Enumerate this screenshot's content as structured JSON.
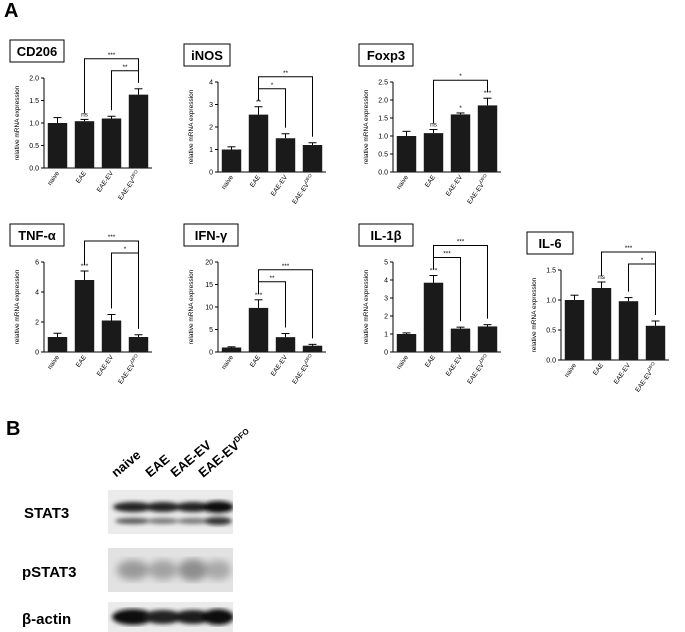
{
  "panels": {
    "a": "A",
    "b": "B"
  },
  "chart_data": [
    {
      "type": "bar",
      "title": "CD206",
      "ylabel": "relative mRNA expression",
      "categories": [
        "naive",
        "EAE",
        "EAE-EV",
        "EAE-EV"
      ],
      "category_sup": [
        "",
        "",
        "",
        "DFO"
      ],
      "values": [
        1.0,
        1.04,
        1.1,
        1.63
      ],
      "errors": [
        0.12,
        0.04,
        0.05,
        0.13
      ],
      "ylim": [
        0,
        2.0
      ],
      "yticks": [
        "0.0",
        "0.5",
        "1.0",
        "1.5",
        "2.0"
      ],
      "bar_marks": [
        "",
        "ns",
        "",
        ""
      ],
      "brackets": [
        {
          "from": 1,
          "to": 3,
          "label": "***"
        },
        {
          "from": 2,
          "to": 3,
          "label": "**"
        }
      ]
    },
    {
      "type": "bar",
      "title": "iNOS",
      "ylabel": "relative mRNA expression",
      "categories": [
        "naive",
        "EAE",
        "EAE-EV",
        "EAE-EV"
      ],
      "category_sup": [
        "",
        "",
        "",
        "DFO"
      ],
      "values": [
        1.0,
        2.55,
        1.5,
        1.2
      ],
      "errors": [
        0.12,
        0.35,
        0.2,
        0.1
      ],
      "ylim": [
        0,
        4
      ],
      "yticks": [
        "0",
        "1",
        "2",
        "3",
        "4"
      ],
      "bar_marks": [
        "",
        "**",
        "",
        ""
      ],
      "brackets": [
        {
          "from": 1,
          "to": 3,
          "label": "**"
        },
        {
          "from": 1,
          "to": 2,
          "label": "*"
        }
      ]
    },
    {
      "type": "bar",
      "title": "Foxp3",
      "ylabel": "relative mRNA expression",
      "categories": [
        "naive",
        "EAE",
        "EAE-EV",
        "EAE-EV"
      ],
      "category_sup": [
        "",
        "",
        "",
        "DFO"
      ],
      "values": [
        1.0,
        1.08,
        1.6,
        1.85
      ],
      "errors": [
        0.13,
        0.1,
        0.04,
        0.2
      ],
      "ylim": [
        0,
        2.5
      ],
      "yticks": [
        "0.0",
        "0.5",
        "1.0",
        "1.5",
        "2.0",
        "2.5"
      ],
      "bar_marks": [
        "",
        "ns",
        "*",
        "***"
      ],
      "brackets": [
        {
          "from": 1,
          "to": 3,
          "label": "*"
        }
      ]
    },
    {
      "type": "bar",
      "title": "TNF-α",
      "ylabel": "relative mRNA expression",
      "categories": [
        "naive",
        "EAE",
        "EAE-EV",
        "EAE-EV"
      ],
      "category_sup": [
        "",
        "",
        "",
        "DFO"
      ],
      "values": [
        1.0,
        4.8,
        2.1,
        1.0
      ],
      "errors": [
        0.25,
        0.6,
        0.4,
        0.15
      ],
      "ylim": [
        0,
        6
      ],
      "yticks": [
        "0",
        "2",
        "4",
        "6"
      ],
      "bar_marks": [
        "",
        "***",
        "",
        ""
      ],
      "brackets": [
        {
          "from": 1,
          "to": 3,
          "label": "***"
        },
        {
          "from": 2,
          "to": 3,
          "label": "*"
        }
      ]
    },
    {
      "type": "bar",
      "title": "IFN-γ",
      "ylabel": "relative mRNA expression",
      "categories": [
        "naive",
        "EAE",
        "EAE-EV",
        "EAE-EV"
      ],
      "category_sup": [
        "",
        "",
        "",
        "DFO"
      ],
      "values": [
        1.0,
        9.8,
        3.3,
        1.4
      ],
      "errors": [
        0.15,
        1.8,
        0.8,
        0.3
      ],
      "ylim": [
        0,
        20
      ],
      "yticks": [
        "0",
        "5",
        "10",
        "15",
        "20"
      ],
      "bar_marks": [
        "",
        "***",
        "",
        ""
      ],
      "brackets": [
        {
          "from": 1,
          "to": 3,
          "label": "***"
        },
        {
          "from": 1,
          "to": 2,
          "label": "**"
        }
      ]
    },
    {
      "type": "bar",
      "title": "IL-1β",
      "ylabel": "relative mRNA expression",
      "categories": [
        "naive",
        "EAE",
        "EAE-EV",
        "EAE-EV"
      ],
      "category_sup": [
        "",
        "",
        "",
        "DFO"
      ],
      "values": [
        1.0,
        3.85,
        1.3,
        1.42
      ],
      "errors": [
        0.06,
        0.4,
        0.08,
        0.1
      ],
      "ylim": [
        0,
        5
      ],
      "yticks": [
        "0",
        "1",
        "2",
        "3",
        "4",
        "5"
      ],
      "bar_marks": [
        "",
        "***",
        "",
        ""
      ],
      "brackets": [
        {
          "from": 1,
          "to": 3,
          "label": "***"
        },
        {
          "from": 1,
          "to": 2,
          "label": "***"
        }
      ]
    },
    {
      "type": "bar",
      "title": "IL-6",
      "ylabel": "relative mRNA expression",
      "categories": [
        "naive",
        "EAE",
        "EAE-EV",
        "EAE-EV"
      ],
      "category_sup": [
        "",
        "",
        "",
        "DFO"
      ],
      "values": [
        1.0,
        1.2,
        0.98,
        0.57
      ],
      "errors": [
        0.08,
        0.1,
        0.06,
        0.08
      ],
      "ylim": [
        0,
        1.5
      ],
      "yticks": [
        "0.0",
        "0.5",
        "1.0",
        "1.5"
      ],
      "bar_marks": [
        "",
        "ns",
        "",
        ""
      ],
      "brackets": [
        {
          "from": 1,
          "to": 3,
          "label": "***"
        },
        {
          "from": 2,
          "to": 3,
          "label": "*"
        }
      ]
    }
  ],
  "western": {
    "lanes": [
      {
        "label": "naive",
        "sup": ""
      },
      {
        "label": "EAE",
        "sup": ""
      },
      {
        "label": "EAE-EV",
        "sup": ""
      },
      {
        "label": "EAE-EV",
        "sup": "DFO"
      }
    ],
    "rows": [
      {
        "label": "STAT3",
        "style": "double"
      },
      {
        "label": "pSTAT3",
        "style": "faint"
      },
      {
        "label": "β-actin",
        "style": "strong"
      }
    ]
  }
}
